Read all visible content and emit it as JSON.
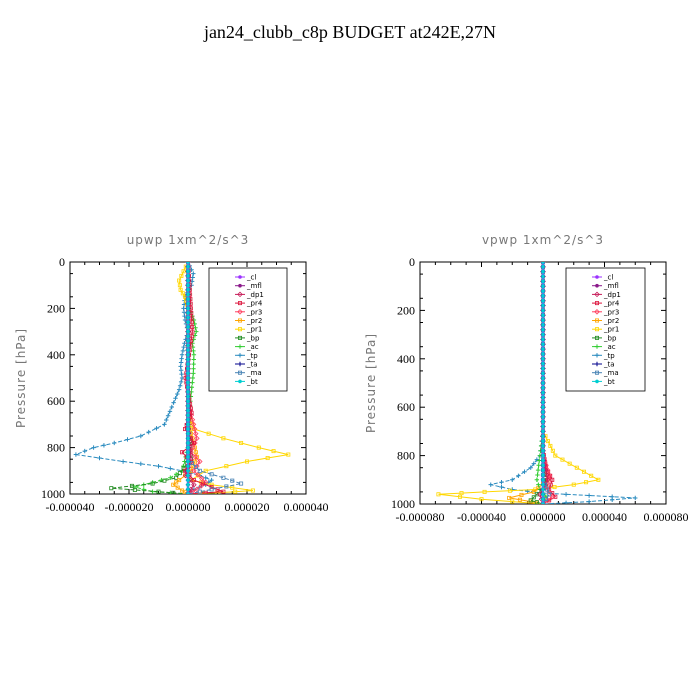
{
  "title": "jan24_clubb_c8p  BUDGET at242E,27N",
  "colors": {
    "_cl": "#9b30ff",
    "_mfl": "#8b1a8b",
    "_dp1": "#c71e5a",
    "_pr4": "#dc143c",
    "_pr3": "#ff4060",
    "_pr2": "#ffa500",
    "_pr1": "#ffd700",
    "_bp": "#228b22",
    "_ac": "#32cd32",
    "_tp": "#2a8bbf",
    "_ta": "#00008b",
    "_ma": "#4682b4",
    "_bt": "#00ced1"
  },
  "chart_data": [
    {
      "type": "line",
      "title": "upwp    1xm^2/s^3",
      "ylabel": "Pressure [hPa]",
      "xlim": [
        -4e-05,
        4e-05
      ],
      "ylim": [
        1000,
        0
      ],
      "xticks": [
        -4e-05,
        -2e-05,
        0,
        2e-05,
        4e-05
      ],
      "xtick_labels": [
        "-0.000040",
        "-0.000020",
        "0.000000",
        "0.000020",
        "0.000040"
      ],
      "yticks": [
        0,
        200,
        400,
        600,
        800,
        1000
      ],
      "legend": [
        "_cl",
        "_mfl",
        "_dp1",
        "_pr4",
        "_pr3",
        "_pr2",
        "_pr1",
        "_bp",
        "_ac",
        "_tp",
        "_ta",
        "_ma",
        "_bt"
      ],
      "legend_position": "top-right",
      "series": [
        {
          "name": "_tp",
          "x": [
            0,
            1.8e-06,
            1.2e-06,
            -1e-06,
            -1.5e-06,
            -1e-06,
            0,
            -1.2e-06,
            -2e-06,
            -2.5e-06,
            -2e-06,
            -3e-06,
            -8e-06,
            -1.6e-05,
            -2.5e-05,
            -3.2e-05,
            -3.8e-05,
            -2.2e-05,
            -1e-05,
            -2e-06,
            4e-06,
            8e-06,
            6e-06,
            2e-06,
            0
          ],
          "y": [
            0,
            50,
            100,
            150,
            200,
            250,
            300,
            350,
            400,
            450,
            500,
            550,
            700,
            750,
            780,
            800,
            830,
            860,
            880,
            900,
            920,
            940,
            960,
            980,
            1000
          ]
        },
        {
          "name": "_ac",
          "x": [
            0,
            5e-07,
            2e-06,
            2.8e-06,
            1.5e-06,
            2e-06,
            1.8e-06,
            8e-07,
            0,
            -2e-06,
            -6e-06,
            -1.2e-05,
            -1.8e-05,
            -1.2e-05,
            0
          ],
          "y": [
            0,
            200,
            250,
            300,
            350,
            400,
            480,
            600,
            800,
            900,
            930,
            950,
            970,
            990,
            1000
          ]
        },
        {
          "name": "_bp",
          "x": [
            0,
            0,
            1e-06,
            -4e-06,
            -1.2e-05,
            -2.6e-05,
            -1e-05,
            0
          ],
          "y": [
            0,
            600,
            850,
            930,
            955,
            975,
            990,
            1000
          ]
        },
        {
          "name": "_pr1",
          "x": [
            0,
            -3e-06,
            -2.5e-06,
            -1e-06,
            0,
            0,
            2e-06,
            1.2e-05,
            2.4e-05,
            3.4e-05,
            2e-05,
            6e-06,
            1e-06,
            8e-06,
            2.2e-05,
            1e-05,
            0
          ],
          "y": [
            0,
            80,
            120,
            150,
            200,
            650,
            720,
            760,
            800,
            830,
            860,
            900,
            940,
            960,
            985,
            995,
            1000
          ]
        },
        {
          "name": "_pr2",
          "x": [
            0,
            0,
            2e-06,
            3e-06,
            1e-06,
            -3e-06,
            -5e-06,
            -2e-06,
            0
          ],
          "y": [
            0,
            700,
            780,
            840,
            900,
            940,
            960,
            985,
            1000
          ]
        },
        {
          "name": "_pr3",
          "x": [
            0,
            0,
            3e-06,
            1e-06,
            4e-06,
            2e-06,
            6e-06,
            3e-06,
            0
          ],
          "y": [
            0,
            600,
            760,
            820,
            860,
            900,
            950,
            980,
            1000
          ]
        },
        {
          "name": "_pr4",
          "x": [
            0,
            1.5e-06,
            -8e-07,
            1.2e-06,
            -1e-06,
            2e-06,
            -2e-06,
            1e-06,
            -1e-06,
            2e-06,
            8e-06,
            1.2e-05,
            0
          ],
          "y": [
            0,
            300,
            500,
            650,
            720,
            780,
            820,
            860,
            900,
            940,
            970,
            990,
            1000
          ]
        },
        {
          "name": "_dp1",
          "x": [
            0,
            0,
            1e-06,
            -8e-07,
            2e-06,
            0
          ],
          "y": [
            0,
            700,
            850,
            920,
            960,
            1000
          ]
        },
        {
          "name": "_ma",
          "x": [
            0,
            0,
            4e-06,
            1.2e-05,
            1.8e-05,
            8e-06,
            0
          ],
          "y": [
            0,
            850,
            900,
            930,
            955,
            980,
            1000
          ]
        },
        {
          "name": "_mfl",
          "x": [
            0,
            0,
            0
          ],
          "y": [
            0,
            500,
            1000
          ]
        },
        {
          "name": "_cl",
          "x": [
            0,
            0
          ],
          "y": [
            0,
            1000
          ]
        },
        {
          "name": "_ta",
          "x": [
            0,
            0
          ],
          "y": [
            0,
            1000
          ]
        },
        {
          "name": "_bt",
          "x": [
            0,
            0
          ],
          "y": [
            0,
            1000
          ]
        }
      ]
    },
    {
      "type": "line",
      "title": "vpwp    1xm^2/s^3",
      "ylabel": "Pressure [hPa]",
      "xlim": [
        -8e-05,
        8e-05
      ],
      "ylim": [
        1000,
        0
      ],
      "xticks": [
        -8e-05,
        -4e-05,
        0,
        4e-05,
        8e-05
      ],
      "xtick_labels": [
        "-0.000080",
        "-0.000040",
        "0.000000",
        "0.000040",
        "0.000080"
      ],
      "yticks": [
        0,
        200,
        400,
        600,
        800,
        1000
      ],
      "legend": [
        "_cl",
        "_mfl",
        "_dp1",
        "_pr4",
        "_pr3",
        "_pr2",
        "_pr1",
        "_bp",
        "_ac",
        "_tp",
        "_ta",
        "_ma",
        "_bt"
      ],
      "legend_position": "top-right",
      "series": [
        {
          "name": "_tp",
          "x": [
            0,
            0,
            -2e-06,
            -8e-06,
            -2e-05,
            -3.4e-05,
            -2e-05,
            0,
            3e-05,
            6e-05,
            3e-05,
            0
          ],
          "y": [
            0,
            700,
            800,
            850,
            900,
            920,
            940,
            955,
            965,
            975,
            990,
            1000
          ]
        },
        {
          "name": "_pr1",
          "x": [
            0,
            0,
            8e-06,
            2.2e-05,
            3.6e-05,
            2e-05,
            -5e-06,
            -3.8e-05,
            -6.8e-05,
            -4e-05,
            0
          ],
          "y": [
            0,
            700,
            800,
            850,
            900,
            920,
            940,
            950,
            960,
            980,
            1000
          ]
        },
        {
          "name": "_pr2",
          "x": [
            0,
            0,
            3e-06,
            -6e-06,
            -2.2e-05,
            -8e-06,
            0
          ],
          "y": [
            0,
            800,
            900,
            950,
            975,
            990,
            1000
          ]
        },
        {
          "name": "_ac",
          "x": [
            0,
            0,
            -4e-06,
            -2e-06,
            2e-06,
            0
          ],
          "y": [
            0,
            700,
            900,
            940,
            970,
            1000
          ]
        },
        {
          "name": "_bp",
          "x": [
            0,
            0,
            2e-06,
            -4e-06,
            -8e-06,
            0
          ],
          "y": [
            0,
            800,
            930,
            960,
            985,
            1000
          ]
        },
        {
          "name": "_pr4",
          "x": [
            0,
            0,
            2e-06,
            6e-06,
            4e-06,
            8e-06,
            0
          ],
          "y": [
            0,
            780,
            850,
            900,
            940,
            970,
            1000
          ]
        },
        {
          "name": "_pr3",
          "x": [
            0,
            0,
            4e-06,
            2e-06,
            6e-06,
            0
          ],
          "y": [
            0,
            800,
            880,
            930,
            970,
            1000
          ]
        },
        {
          "name": "_dp1",
          "x": [
            0,
            0,
            3e-06,
            -2e-06,
            0
          ],
          "y": [
            0,
            800,
            900,
            960,
            1000
          ]
        },
        {
          "name": "_ma",
          "x": [
            0,
            0,
            4e-06,
            0
          ],
          "y": [
            0,
            900,
            960,
            1000
          ]
        },
        {
          "name": "_mfl",
          "x": [
            0,
            0
          ],
          "y": [
            0,
            1000
          ]
        },
        {
          "name": "_cl",
          "x": [
            0,
            0
          ],
          "y": [
            0,
            1000
          ]
        },
        {
          "name": "_ta",
          "x": [
            0,
            0
          ],
          "y": [
            0,
            1000
          ]
        },
        {
          "name": "_bt",
          "x": [
            0,
            0
          ],
          "y": [
            0,
            1000
          ]
        }
      ]
    }
  ]
}
